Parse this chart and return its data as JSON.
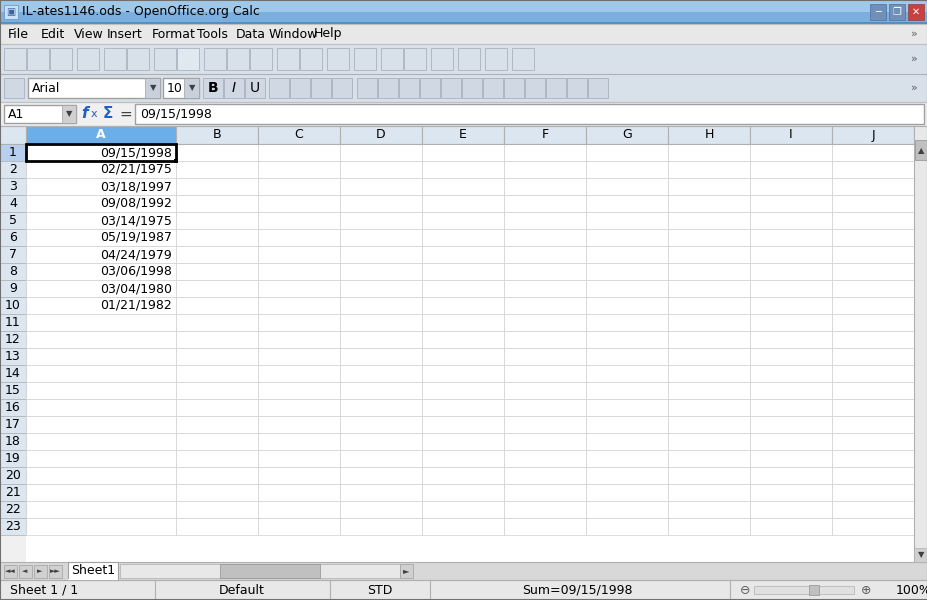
{
  "title": "IL-ates1146.ods - OpenOffice.org Calc",
  "formula_bar_text": "09/15/1998",
  "cell_ref": "A1",
  "dates": [
    "09/15/1998",
    "02/21/1975",
    "03/18/1997",
    "09/08/1992",
    "03/14/1975",
    "05/19/1987",
    "04/24/1979",
    "03/06/1998",
    "03/04/1980",
    "01/21/1982"
  ],
  "col_headers": [
    "A",
    "B",
    "C",
    "D",
    "E",
    "F",
    "G",
    "H",
    "I",
    "J"
  ],
  "row_count": 23,
  "status_bar_left": "Sheet 1 / 1",
  "status_bar_mid": "Default",
  "status_bar_std": "STD",
  "status_bar_sum": "Sum=09/15/1998",
  "sheet_tab": "Sheet1",
  "titlebar_bg1": "#6ea0d0",
  "titlebar_bg2": "#a8c8e8",
  "titlebar_text_color": "#000000",
  "menu_bg": "#e8e8e8",
  "toolbar_bg": "#d8e0ea",
  "formula_bar_bg": "#f0f0f0",
  "col_A_header_bg": "#6baee8",
  "col_header_bg": "#dce6f1",
  "row_header_bg": "#dce6f1",
  "row1_header_bg": "#b8d0ef",
  "cell_bg": "#ffffff",
  "grid_color": "#d0d0d0",
  "selected_cell_border": "#000000",
  "scrollbar_bg": "#e0e0e0",
  "scrollbar_track": "#f0f0f0",
  "font_family": "Arial",
  "font_size_str": "10",
  "winbtn_close_bg": "#d44040",
  "winbtn_max_bg": "#6080b0",
  "winbtn_min_bg": "#6080b0",
  "status_bar_bg": "#e8e8e8",
  "sheet_tab_bg": "#ffffff",
  "hscroll_bg": "#e0e0e0",
  "hscroll_thumb_bg": "#c0c0c0"
}
